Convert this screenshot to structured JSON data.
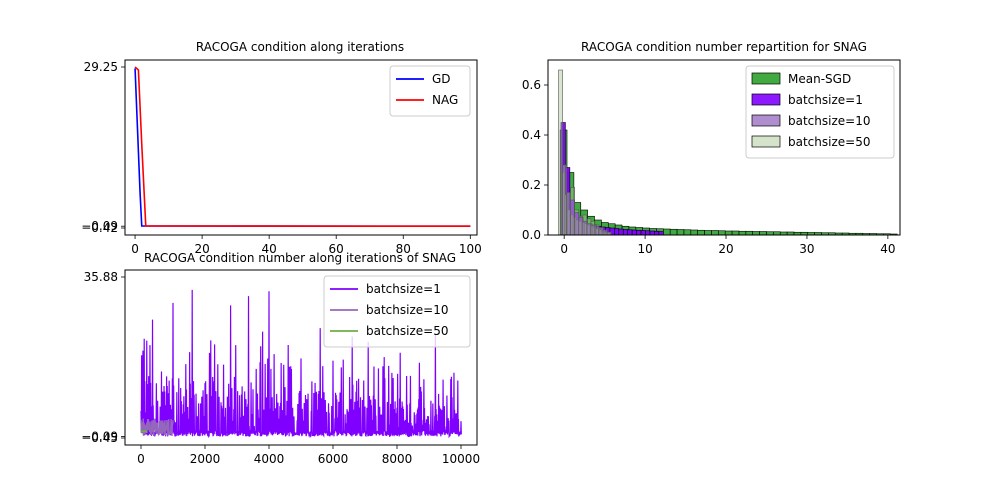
{
  "chart_data": [
    {
      "type": "line",
      "title": "RACOGA condition along iterations",
      "xlim": [
        -3,
        102
      ],
      "ylim": [
        -0.42,
        29.25
      ],
      "xticks": [
        0,
        20,
        40,
        60,
        80,
        100
      ],
      "yticks": [
        29.25,
        -0.09,
        -0.42
      ],
      "ytick_labels": [
        "29.25",
        "−0.09",
        "−0.42"
      ],
      "legend_position": "upper-right",
      "series": [
        {
          "name": "GD",
          "color": "#0000ff",
          "x": [
            0,
            1.5,
            2,
            100
          ],
          "y": [
            29.0,
            6.0,
            -0.05,
            -0.09
          ]
        },
        {
          "name": "NAG",
          "color": "#ff0000",
          "x": [
            0,
            1,
            2,
            3.2,
            100
          ],
          "y": [
            29.25,
            28.7,
            15.0,
            -0.05,
            -0.09
          ]
        }
      ]
    },
    {
      "type": "bar",
      "title": "RACOGA condition number repartition for SNAG",
      "xlim": [
        -2,
        41.5
      ],
      "ylim": [
        0,
        0.7
      ],
      "xticks": [
        0,
        10,
        20,
        30,
        40
      ],
      "yticks": [
        0.0,
        0.2,
        0.4,
        0.6
      ],
      "ytick_labels": [
        "0.0",
        "0.2",
        "0.4",
        "0.6"
      ],
      "legend_position": "upper-right",
      "series": [
        {
          "name": "Mean-SGD",
          "color": "#2ca02c",
          "bin_width": 0.85,
          "bins_start": [
            -0.5,
            0.35,
            1.2,
            2.05,
            2.9,
            3.75,
            4.6,
            5.45,
            6.3,
            7.15,
            8.0,
            8.85,
            9.7,
            10.55,
            11.4,
            12.25,
            13.1,
            13.95,
            14.8,
            15.65,
            16.5,
            17.35,
            18.2,
            19.05,
            19.9,
            20.75,
            21.6,
            22.45,
            23.3,
            24.15,
            25.0,
            25.85,
            26.7,
            27.55,
            28.4,
            29.25,
            30.1,
            30.95,
            31.8,
            32.65,
            33.5,
            34.35,
            35.2,
            36.05,
            36.9,
            37.75,
            38.6,
            39.45,
            40.3
          ],
          "values": [
            0.42,
            0.25,
            0.13,
            0.1,
            0.075,
            0.06,
            0.05,
            0.045,
            0.04,
            0.035,
            0.032,
            0.03,
            0.028,
            0.026,
            0.025,
            0.024,
            0.023,
            0.022,
            0.021,
            0.02,
            0.019,
            0.018,
            0.018,
            0.017,
            0.016,
            0.016,
            0.015,
            0.015,
            0.014,
            0.014,
            0.013,
            0.013,
            0.012,
            0.012,
            0.011,
            0.011,
            0.01,
            0.01,
            0.009,
            0.009,
            0.008,
            0.008,
            0.007,
            0.007,
            0.006,
            0.006,
            0.005,
            0.005,
            0.004
          ]
        },
        {
          "name": "batchsize=1",
          "color": "#7f00ff",
          "bin_width": 0.55,
          "bins_start": [
            -0.4,
            0.15,
            0.7,
            1.25,
            1.8,
            2.35,
            2.9,
            3.45,
            4.0,
            4.55,
            5.1,
            5.65,
            6.2,
            6.75,
            7.3,
            7.85,
            8.4,
            8.95,
            9.5,
            10.05,
            10.6,
            11.15,
            11.7
          ],
          "values": [
            0.45,
            0.27,
            0.14,
            0.09,
            0.07,
            0.055,
            0.045,
            0.04,
            0.035,
            0.032,
            0.03,
            0.028,
            0.026,
            0.024,
            0.022,
            0.021,
            0.02,
            0.019,
            0.018,
            0.017,
            0.016,
            0.015,
            0.014
          ]
        },
        {
          "name": "batchsize=10",
          "color": "#9467bd",
          "bin_width": 0.35,
          "bins_start": [
            -0.3,
            0.05,
            0.4,
            0.75,
            1.1,
            1.45,
            1.8,
            2.15,
            2.5,
            2.85,
            3.2,
            3.55,
            3.9,
            4.25,
            4.6,
            4.95,
            5.3
          ],
          "values": [
            0.25,
            0.16,
            0.1,
            0.08,
            0.07,
            0.06,
            0.055,
            0.05,
            0.045,
            0.04,
            0.035,
            0.03,
            0.025,
            0.02,
            0.015,
            0.01,
            0.008
          ]
        },
        {
          "name": "batchsize=50",
          "color": "#a9c894",
          "bin_width": 0.5,
          "bins_start": [
            -0.7,
            -0.2,
            0.3,
            0.8,
            1.3,
            1.8,
            2.3,
            2.8,
            3.3,
            3.8,
            4.3,
            4.8,
            5.3
          ],
          "values": [
            0.66,
            0.28,
            0.17,
            0.19,
            0.1,
            0.075,
            0.08,
            0.065,
            0.055,
            0.04,
            0.03,
            0.02,
            0.012
          ]
        }
      ]
    },
    {
      "type": "line",
      "title": "RACOGA condition number along iterations of SNAG",
      "xlim": [
        -500,
        10500
      ],
      "ylim": [
        -0.45,
        35.88
      ],
      "xticks": [
        0,
        2000,
        4000,
        6000,
        8000,
        10000
      ],
      "yticks": [
        35.88,
        -0.09,
        -0.45
      ],
      "ytick_labels": [
        "35.88",
        "−0.09",
        "−0.45"
      ],
      "legend_position": "upper-right",
      "series": [
        {
          "name": "batchsize=1",
          "color": "#7f00ff",
          "n_points": 10000,
          "peak_max": 33.5,
          "noise_floor": -0.09,
          "peak_iterations": [
            100,
            350,
            1000,
            1600,
            2300,
            2800,
            3350,
            3800,
            4000,
            4600,
            5000,
            5600,
            6000,
            6600,
            7100,
            7600,
            8100,
            8700,
            9200,
            9700
          ]
        },
        {
          "name": "batchsize=10",
          "color": "#9467bd",
          "n_points": 1000,
          "peak_max": 4.0,
          "noise_floor": 0.0
        },
        {
          "name": "batchsize=50",
          "color": "#70ad47",
          "n_points": 200,
          "peak_max": 1.0,
          "noise_floor": 1.0
        }
      ]
    }
  ]
}
